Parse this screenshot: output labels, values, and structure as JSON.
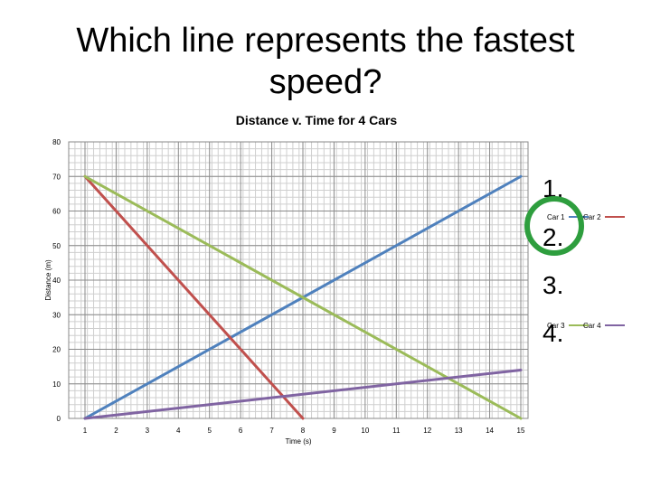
{
  "slide": {
    "title_line1": "Which line represents the fastest",
    "title_line2": "speed?"
  },
  "answer_options": [
    "1.",
    "2.",
    "3.",
    "4."
  ],
  "highlight": {
    "selected_option": "2.",
    "color": "#2e9e3e"
  },
  "chart_data": {
    "type": "line",
    "title": "Distance v. Time for 4 Cars",
    "xlabel": "Time (s)",
    "ylabel": "Distance (m)",
    "xlim": [
      1,
      15
    ],
    "ylim": [
      0,
      80
    ],
    "x_ticks": [
      1,
      2,
      3,
      4,
      5,
      6,
      7,
      8,
      9,
      10,
      11,
      12,
      13,
      14,
      15
    ],
    "y_ticks": [
      0,
      10,
      20,
      30,
      40,
      50,
      60,
      70,
      80
    ],
    "grid": true,
    "legend_position": "right",
    "series": [
      {
        "name": "Car 1",
        "color": "#4f81bd",
        "x": [
          1,
          15
        ],
        "y": [
          0,
          70
        ]
      },
      {
        "name": "Car 2",
        "color": "#c0504d",
        "x": [
          1,
          8
        ],
        "y": [
          70,
          0
        ]
      },
      {
        "name": "Car 3",
        "color": "#9bbb59",
        "x": [
          1,
          15
        ],
        "y": [
          70,
          0
        ]
      },
      {
        "name": "Car 4",
        "color": "#8064a2",
        "x": [
          1,
          15
        ],
        "y": [
          0,
          14
        ]
      }
    ]
  }
}
